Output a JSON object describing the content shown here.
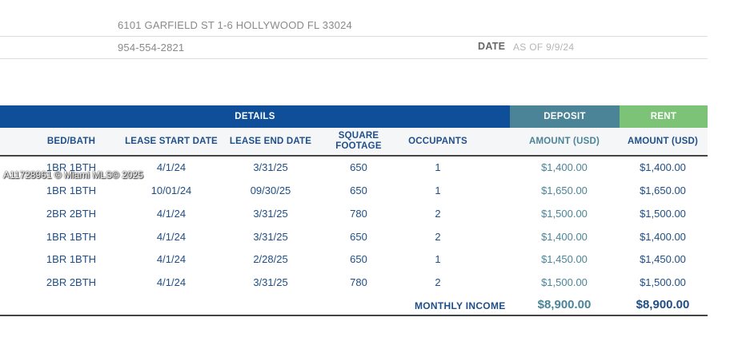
{
  "info": {
    "address": "6101 GARFIELD ST 1-6 HOLLYWOOD FL 33024",
    "phone": "954-554-2821",
    "date_label": "DATE",
    "date_value": "AS OF 9/9/24"
  },
  "bands": {
    "details": "DETAILS",
    "deposit": "DEPOSIT",
    "rent": "RENT"
  },
  "headers": {
    "bed_bath": "BED/BATH",
    "lease_start": "LEASE START DATE",
    "lease_end": "LEASE END DATE",
    "square_footage_1": "SQUARE",
    "square_footage_2": "FOOTAGE",
    "occupants": "OCCUPANTS",
    "deposit_amount": "AMOUNT (USD)",
    "rent_amount": "AMOUNT (USD)"
  },
  "rows": [
    {
      "bed_bath": "1BR 1BTH",
      "start": "4/1/24",
      "end": "3/31/25",
      "sqft": "650",
      "occupants": "1",
      "deposit": "$1,400.00",
      "rent": "$1,400.00"
    },
    {
      "bed_bath": "1BR 1BTH",
      "start": "10/01/24",
      "end": "09/30/25",
      "sqft": "650",
      "occupants": "1",
      "deposit": "$1,650.00",
      "rent": "$1,650.00"
    },
    {
      "bed_bath": "2BR 2BTH",
      "start": "4/1/24",
      "end": "3/31/25",
      "sqft": "780",
      "occupants": "2",
      "deposit": "$1,500.00",
      "rent": "$1,500.00"
    },
    {
      "bed_bath": "1BR 1BTH",
      "start": "4/1/24",
      "end": "3/31/25",
      "sqft": "650",
      "occupants": "2",
      "deposit": "$1,400.00",
      "rent": "$1,400.00"
    },
    {
      "bed_bath": "1BR 1BTH",
      "start": "4/1/24",
      "end": "2/28/25",
      "sqft": "650",
      "occupants": "1",
      "deposit": "$1,450.00",
      "rent": "$1,450.00"
    },
    {
      "bed_bath": "2BR 2BTH",
      "start": "4/1/24",
      "end": "3/31/25",
      "sqft": "780",
      "occupants": "2",
      "deposit": "$1,500.00",
      "rent": "$1,500.00"
    }
  ],
  "totals": {
    "label": "MONTHLY INCOME",
    "deposit": "$8,900.00",
    "rent": "$8,900.00"
  },
  "colors": {
    "details_band": "#0f4f99",
    "deposit_band": "#4b8497",
    "rent_band": "#7cc277"
  },
  "watermark": "A11728961 © Miami MLS© 2025"
}
